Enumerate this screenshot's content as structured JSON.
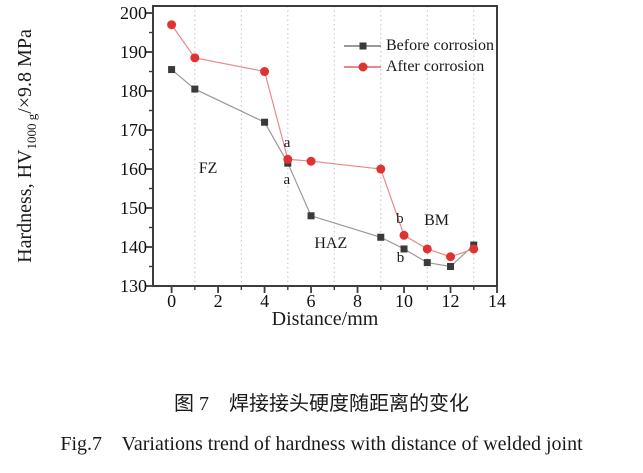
{
  "chart_data": {
    "type": "line",
    "x": [
      0,
      1,
      4,
      5,
      6,
      9,
      10,
      11,
      12,
      13
    ],
    "series": [
      {
        "name": "Before corrosion",
        "marker": "square",
        "marker_color": "#3a3a3a",
        "line_color": "#999999",
        "values": [
          185.5,
          180.5,
          172,
          161.5,
          148,
          142.5,
          139.5,
          136,
          135,
          140.5
        ]
      },
      {
        "name": "After corrosion",
        "marker": "circle",
        "marker_color": "#e03331",
        "line_color": "#e88a8a",
        "values": [
          197,
          188.5,
          185,
          162.5,
          162,
          160,
          143,
          139.5,
          137.5,
          139.5
        ]
      }
    ],
    "xlabel": "Distance/mm",
    "ylabel": {
      "main": "Hardness, HV",
      "sub": "1000 g",
      "rest": "/×9.8 MPa"
    },
    "x_ticks": [
      0,
      2,
      4,
      6,
      8,
      10,
      12,
      14
    ],
    "x_minor_ticks": [
      1,
      3,
      5,
      7,
      9,
      11,
      13
    ],
    "y_ticks": [
      130,
      140,
      150,
      160,
      170,
      180,
      190,
      200
    ],
    "y_minor_ticks": [
      135,
      145,
      155,
      165,
      175,
      185,
      195
    ],
    "xlim": [
      -0.8,
      14
    ],
    "ylim": [
      130,
      201.8
    ],
    "grid": {
      "vertical_at": [
        1,
        3,
        5,
        7,
        9,
        11,
        13
      ],
      "style": "dotted",
      "color": "#c4c4c4"
    },
    "legend_position": "top-right-inside",
    "annotations": [
      {
        "text": "FZ",
        "x": 1.57,
        "y": 160.0
      },
      {
        "text": "HAZ",
        "x": 6.85,
        "y": 140.8
      },
      {
        "text": "BM",
        "x": 11.4,
        "y": 146.7
      },
      {
        "text": "a",
        "x": 4.97,
        "y": 166.6
      },
      {
        "text": "a",
        "x": 4.96,
        "y": 157.3
      },
      {
        "text": "b",
        "x": 9.82,
        "y": 147.2
      },
      {
        "text": "b",
        "x": 9.85,
        "y": 137.3
      }
    ],
    "axis_color": "#3c3c3c"
  },
  "captions": {
    "chinese": "图 7　焊接接头硬度随距离的变化",
    "english": "Fig.7    Variations trend of hardness with distance of welded joint"
  }
}
